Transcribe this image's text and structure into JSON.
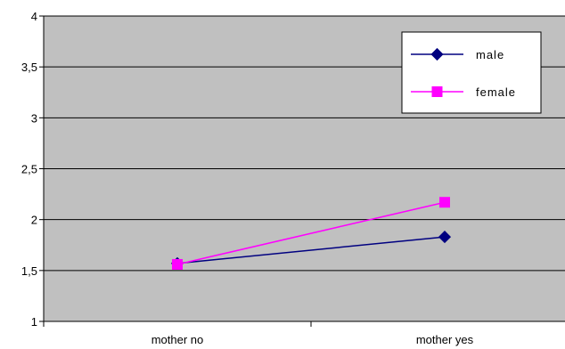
{
  "chart_data": {
    "type": "line",
    "title": "",
    "xlabel": "",
    "ylabel": "",
    "categories": [
      "mother no",
      "mother yes"
    ],
    "ylim": [
      1,
      4
    ],
    "yticks": [
      "1",
      "1,5",
      "2",
      "2,5",
      "3",
      "3,5",
      "4"
    ],
    "ytick_values": [
      1,
      1.5,
      2,
      2.5,
      3,
      3.5,
      4
    ],
    "grid": true,
    "legend_position": "top-right",
    "plot_background": "#c0c0c0",
    "series": [
      {
        "name": "male",
        "values": [
          1.57,
          1.83
        ],
        "color": "#000080",
        "marker": "diamond"
      },
      {
        "name": "female",
        "values": [
          1.56,
          2.17
        ],
        "color": "#ff00ff",
        "marker": "square"
      }
    ]
  }
}
